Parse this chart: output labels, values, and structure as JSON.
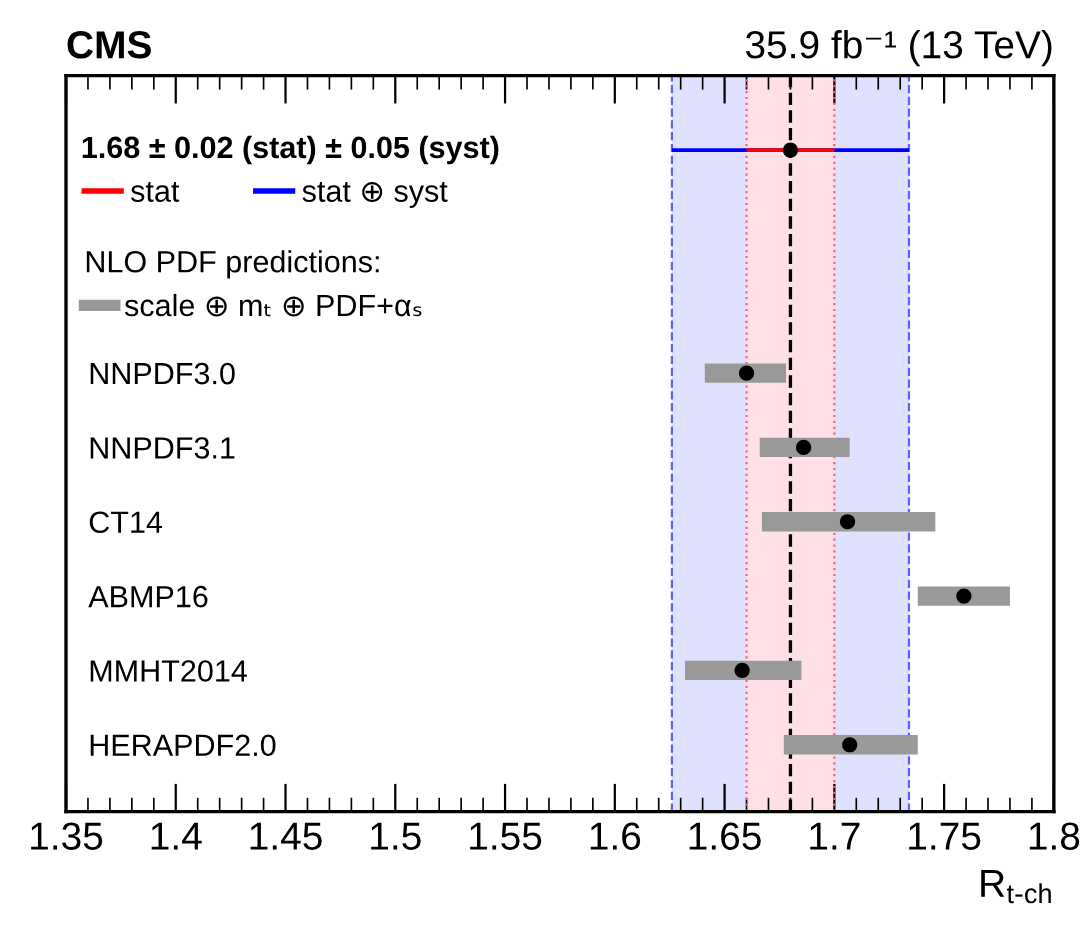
{
  "chart_data": {
    "type": "bar",
    "title": "CMS",
    "subtitle": "35.9 fb⁻¹ (13 TeV)",
    "xlabel": "R$_{t-ch}$",
    "legend_title": "NLO PDF predictions:",
    "orientation": "horizontal",
    "categories": [
      null,
      null,
      null,
      "NNPDF3.0",
      "NNPDF3.1",
      "CT14",
      "ABMP16",
      "MMHT2014",
      "HERAPDF2.0"
    ],
    "series": [
      {
        "name": "stat ⊕ syst",
        "color": "#0000ff",
        "base": [
          1.626,
          null,
          null,
          null,
          null,
          null,
          null,
          null,
          null
        ],
        "values": [
          0.108,
          null,
          null,
          null,
          null,
          null,
          null,
          null,
          null
        ]
      },
      {
        "name": "stat",
        "color": "#ff0000",
        "base": [
          1.66,
          null,
          null,
          null,
          null,
          null,
          null,
          null,
          null
        ],
        "values": [
          0.04,
          null,
          null,
          null,
          null,
          null,
          null,
          null,
          null
        ]
      },
      {
        "name": "scale ⊕ mₜ ⊕ PDF+αₛ",
        "color": "#999999",
        "base": [
          null,
          null,
          null,
          1.641,
          1.666,
          1.667,
          1.738,
          1.632,
          1.677
        ],
        "values": [
          null,
          null,
          null,
          0.037,
          0.041,
          0.079,
          0.042,
          0.053,
          0.061
        ]
      },
      {
        "type": "scatter",
        "color": "#000000",
        "marker": "circle",
        "values": [
          1.68,
          null,
          null,
          1.66,
          1.686,
          1.706,
          1.759,
          1.658,
          1.707
        ]
      }
    ],
    "bands": [
      {
        "axis": "x",
        "from": 1.626,
        "to": 1.734,
        "color": "#e0e0ff"
      },
      {
        "axis": "x",
        "from": 1.66,
        "to": 1.7,
        "color": "#ffe0e6"
      }
    ],
    "ref_lines": [
      {
        "axis": "x",
        "value": 1.626,
        "line_style": "dashed",
        "color": "#6060ff"
      },
      {
        "axis": "x",
        "value": 1.734,
        "line_style": "dashed",
        "color": "#6060ff"
      },
      {
        "axis": "x",
        "value": 1.66,
        "line_style": "dotted",
        "color": "#ff6066"
      },
      {
        "axis": "x",
        "value": 1.7,
        "line_style": "dotted",
        "color": "#ff6066"
      },
      {
        "axis": "x",
        "value": 1.68,
        "line_style": "dashed",
        "color": "#000000"
      }
    ],
    "annotations": [
      "1.68 ± 0.02 (stat) ± 0.05 (syst)"
    ],
    "xlim": [
      1.35,
      1.8
    ],
    "xticks": [
      1.35,
      1.4,
      1.45,
      1.5,
      1.55,
      1.6,
      1.65,
      1.7,
      1.75,
      1.8
    ],
    "legend": "top left",
    "grid": false
  }
}
